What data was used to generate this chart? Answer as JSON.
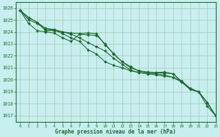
{
  "title": "Graphe pression niveau de la mer (hPa)",
  "bg_color": "#c8eef0",
  "grid_color": "#a0c8b0",
  "line_color": "#1a6b2a",
  "xlim": [
    -0.5,
    23
  ],
  "ylim": [
    1016.5,
    1026.5
  ],
  "yticks": [
    1017,
    1018,
    1019,
    1020,
    1021,
    1022,
    1023,
    1024,
    1025,
    1026
  ],
  "xticks": [
    0,
    1,
    2,
    3,
    4,
    5,
    6,
    7,
    8,
    9,
    10,
    11,
    12,
    13,
    14,
    15,
    16,
    17,
    18,
    19,
    20,
    21,
    22,
    23
  ],
  "series": [
    [
      1025.8,
      1025.2,
      1024.8,
      1024.1,
      1024.1,
      1024.0,
      1023.9,
      1023.85,
      1023.9,
      1023.85,
      1022.9,
      1022.2,
      1021.5,
      1021.1,
      1020.7,
      1020.6,
      1020.6,
      1020.55,
      1020.5,
      1019.85,
      1019.2,
      1019.0,
      1018.1,
      1017.0
    ],
    [
      1025.8,
      1024.7,
      1024.1,
      1024.0,
      1023.9,
      1023.5,
      1023.2,
      1023.8,
      1023.75,
      1023.7,
      1023.0,
      1022.15,
      1021.5,
      1021.0,
      1020.75,
      1020.65,
      1020.6,
      1020.65,
      1020.5,
      1019.85,
      1019.2,
      1019.0,
      1018.1,
      1017.0
    ],
    [
      1025.8,
      1025.0,
      1024.7,
      1024.2,
      1024.15,
      1023.85,
      1023.5,
      1023.2,
      1022.5,
      1022.15,
      1021.5,
      1021.2,
      1021.0,
      1020.75,
      1020.6,
      1020.5,
      1020.4,
      1020.3,
      1020.2,
      1019.9,
      1019.3,
      1019.0,
      1017.8,
      1017.0
    ],
    [
      1025.8,
      1025.2,
      1024.8,
      1024.3,
      1024.2,
      1024.0,
      1023.8,
      1023.5,
      1023.1,
      1022.75,
      1022.4,
      1021.8,
      1021.3,
      1020.8,
      1020.6,
      1020.5,
      1020.5,
      1020.4,
      1020.2,
      1019.8,
      1019.2,
      1019.0,
      1018.1,
      1017.0
    ]
  ]
}
